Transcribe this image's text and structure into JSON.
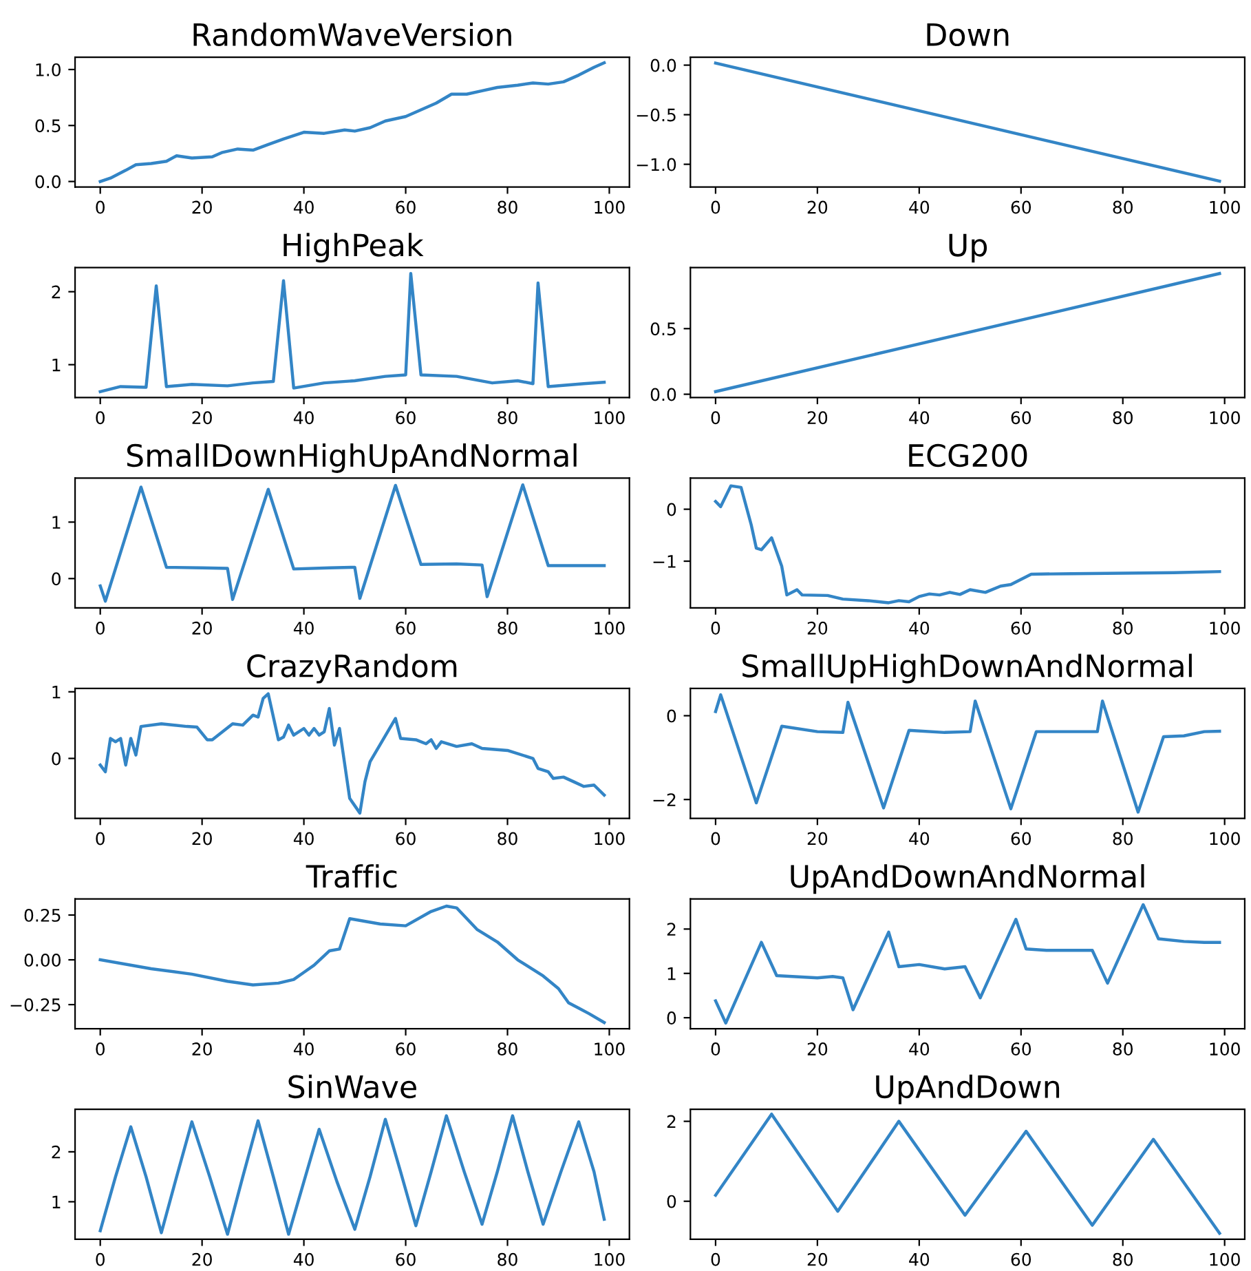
{
  "chart_data": [
    {
      "type": "line",
      "title": "RandomWaveVersion",
      "xlim": [
        -4.95,
        103.95
      ],
      "xticks": [
        0,
        20,
        40,
        60,
        80,
        100
      ],
      "ylim": [
        -0.05,
        1.11
      ],
      "yticks": [
        {
          "value": 0,
          "label": "0.0"
        },
        {
          "value": 0.5,
          "label": "0.5"
        },
        {
          "value": 1,
          "label": "1.0"
        }
      ],
      "grid": false,
      "series": [
        {
          "color": "#3385c6",
          "x": [
            0,
            2,
            5,
            7,
            10,
            13,
            15,
            18,
            22,
            24,
            27,
            30,
            33,
            36,
            40,
            44,
            48,
            50,
            53,
            56,
            60,
            63,
            66,
            69,
            72,
            75,
            78,
            82,
            85,
            88,
            91,
            94,
            97,
            99
          ],
          "values": [
            0,
            0.03,
            0.1,
            0.15,
            0.16,
            0.18,
            0.23,
            0.21,
            0.22,
            0.26,
            0.29,
            0.28,
            0.33,
            0.38,
            0.44,
            0.43,
            0.46,
            0.45,
            0.48,
            0.54,
            0.58,
            0.64,
            0.7,
            0.78,
            0.78,
            0.81,
            0.84,
            0.86,
            0.88,
            0.87,
            0.89,
            0.95,
            1.02,
            1.06
          ]
        }
      ]
    },
    {
      "type": "line",
      "title": "Down",
      "xlim": [
        -4.95,
        103.95
      ],
      "xticks": [
        0,
        20,
        40,
        60,
        80,
        100
      ],
      "ylim": [
        -1.23,
        0.08
      ],
      "yticks": [
        {
          "value": -1,
          "label": "−1.0"
        },
        {
          "value": -0.5,
          "label": "−0.5"
        },
        {
          "value": 0,
          "label": "0.0"
        }
      ],
      "grid": false,
      "series": [
        {
          "color": "#3385c6",
          "x": [
            0,
            99
          ],
          "values": [
            0.02,
            -1.17
          ]
        }
      ]
    },
    {
      "type": "line",
      "title": "HighPeak",
      "xlim": [
        -4.95,
        103.95
      ],
      "xticks": [
        0,
        20,
        40,
        60,
        80,
        100
      ],
      "ylim": [
        0.55,
        2.33
      ],
      "yticks": [
        1,
        2
      ],
      "grid": false,
      "series": [
        {
          "color": "#3385c6",
          "x": [
            0,
            4,
            9,
            11,
            13,
            18,
            25,
            30,
            34,
            36,
            38,
            44,
            50,
            56,
            60,
            61,
            63,
            70,
            77,
            82,
            85,
            86,
            88,
            95,
            99
          ],
          "values": [
            0.63,
            0.7,
            0.69,
            2.08,
            0.7,
            0.73,
            0.71,
            0.75,
            0.77,
            2.15,
            0.68,
            0.75,
            0.78,
            0.84,
            0.86,
            2.25,
            0.86,
            0.84,
            0.75,
            0.78,
            0.74,
            2.12,
            0.7,
            0.74,
            0.76
          ]
        }
      ]
    },
    {
      "type": "line",
      "title": "Up",
      "xlim": [
        -4.95,
        103.95
      ],
      "xticks": [
        0,
        20,
        40,
        60,
        80,
        100
      ],
      "ylim": [
        -0.025,
        0.965
      ],
      "yticks": [
        {
          "value": 0,
          "label": "0.0"
        },
        {
          "value": 0.5,
          "label": "0.5"
        }
      ],
      "grid": false,
      "series": [
        {
          "color": "#3385c6",
          "x": [
            0,
            99
          ],
          "values": [
            0.02,
            0.92
          ]
        }
      ]
    },
    {
      "type": "line",
      "title": "SmallDownHighUpAndNormal",
      "xlim": [
        -4.95,
        103.95
      ],
      "xticks": [
        0,
        20,
        40,
        60,
        80,
        100
      ],
      "ylim": [
        -0.52,
        1.78
      ],
      "yticks": [
        0,
        1
      ],
      "grid": false,
      "series": [
        {
          "color": "#3385c6",
          "x": [
            0,
            1,
            8,
            13,
            20,
            25,
            26,
            33,
            38,
            45,
            50,
            51,
            58,
            63,
            70,
            75,
            76,
            83,
            88,
            95,
            99
          ],
          "values": [
            -0.13,
            -0.4,
            1.62,
            0.2,
            0.19,
            0.18,
            -0.37,
            1.58,
            0.17,
            0.19,
            0.2,
            -0.35,
            1.65,
            0.25,
            0.26,
            0.24,
            -0.32,
            1.66,
            0.23,
            0.23,
            0.23
          ]
        }
      ]
    },
    {
      "type": "line",
      "title": "ECG200",
      "xlim": [
        -4.95,
        103.95
      ],
      "xticks": [
        0,
        20,
        40,
        60,
        80,
        100
      ],
      "ylim": [
        -1.9,
        0.6
      ],
      "yticks": [
        {
          "value": -1,
          "label": "−1"
        },
        0
      ],
      "grid": false,
      "series": [
        {
          "color": "#3385c6",
          "x": [
            0,
            1,
            3,
            5,
            7,
            8,
            9,
            11,
            13,
            14,
            16,
            17,
            22,
            25,
            30,
            34,
            36,
            38,
            40,
            42,
            44,
            46,
            48,
            50,
            53,
            56,
            58,
            60,
            62,
            70,
            80,
            90,
            99
          ],
          "values": [
            0.15,
            0.05,
            0.45,
            0.42,
            -0.3,
            -0.75,
            -0.78,
            -0.55,
            -1.1,
            -1.65,
            -1.55,
            -1.65,
            -1.66,
            -1.73,
            -1.76,
            -1.8,
            -1.76,
            -1.78,
            -1.68,
            -1.63,
            -1.65,
            -1.6,
            -1.64,
            -1.55,
            -1.6,
            -1.48,
            -1.45,
            -1.35,
            -1.25,
            -1.24,
            -1.23,
            -1.22,
            -1.2
          ]
        }
      ]
    },
    {
      "type": "line",
      "title": "CrazyRandom",
      "xlim": [
        -4.95,
        103.95
      ],
      "xticks": [
        0,
        20,
        40,
        60,
        80,
        100
      ],
      "ylim": [
        -0.9,
        1.05
      ],
      "yticks": [
        0,
        1
      ],
      "grid": false,
      "series": [
        {
          "color": "#3385c6",
          "x": [
            0,
            1,
            2,
            3,
            4,
            5,
            6,
            7,
            8,
            12,
            17,
            19,
            21,
            22,
            26,
            28,
            30,
            31,
            32,
            33,
            35,
            36,
            37,
            38,
            40,
            41,
            42,
            43,
            44,
            45,
            46,
            47,
            49,
            51,
            52,
            53,
            58,
            59,
            62,
            64,
            65,
            66,
            67,
            70,
            73,
            75,
            80,
            85,
            86,
            88,
            89,
            91,
            93,
            95,
            97,
            99
          ],
          "values": [
            -0.1,
            -0.2,
            0.3,
            0.25,
            0.3,
            -0.1,
            0.3,
            0.05,
            0.48,
            0.52,
            0.48,
            0.47,
            0.28,
            0.28,
            0.52,
            0.5,
            0.65,
            0.62,
            0.9,
            0.97,
            0.28,
            0.32,
            0.5,
            0.35,
            0.45,
            0.35,
            0.45,
            0.35,
            0.4,
            0.75,
            0.2,
            0.45,
            -0.6,
            -0.82,
            -0.35,
            -0.05,
            0.6,
            0.3,
            0.28,
            0.22,
            0.28,
            0.15,
            0.25,
            0.18,
            0.22,
            0.15,
            0.12,
            0.0,
            -0.15,
            -0.2,
            -0.3,
            -0.28,
            -0.35,
            -0.42,
            -0.4,
            -0.55
          ]
        }
      ]
    },
    {
      "type": "line",
      "title": "SmallUpHighDownAndNormal",
      "xlim": [
        -4.95,
        103.95
      ],
      "xticks": [
        0,
        20,
        40,
        60,
        80,
        100
      ],
      "ylim": [
        -2.45,
        0.65
      ],
      "yticks": [
        {
          "value": -2,
          "label": "−2"
        },
        0
      ],
      "grid": false,
      "series": [
        {
          "color": "#3385c6",
          "x": [
            0,
            1,
            8,
            13,
            20,
            25,
            26,
            33,
            38,
            45,
            50,
            51,
            58,
            63,
            70,
            75,
            76,
            83,
            88,
            92,
            96,
            99
          ],
          "values": [
            0.1,
            0.5,
            -2.08,
            -0.25,
            -0.38,
            -0.4,
            0.32,
            -2.2,
            -0.35,
            -0.4,
            -0.38,
            0.35,
            -2.22,
            -0.38,
            -0.38,
            -0.38,
            0.35,
            -2.3,
            -0.5,
            -0.48,
            -0.38,
            -0.37
          ]
        }
      ]
    },
    {
      "type": "line",
      "title": "Traffic",
      "xlim": [
        -4.95,
        103.95
      ],
      "xticks": [
        0,
        20,
        40,
        60,
        80,
        100
      ],
      "ylim": [
        -0.385,
        0.34
      ],
      "yticks": [
        {
          "value": -0.25,
          "label": "−0.25"
        },
        {
          "value": 0,
          "label": "0.00"
        },
        0.25
      ],
      "grid": false,
      "series": [
        {
          "color": "#3385c6",
          "x": [
            0,
            10,
            18,
            25,
            30,
            35,
            38,
            40,
            42,
            45,
            47,
            49,
            55,
            60,
            65,
            68,
            70,
            74,
            78,
            82,
            87,
            90,
            92,
            94,
            96,
            99
          ],
          "values": [
            0,
            -0.05,
            -0.08,
            -0.12,
            -0.14,
            -0.13,
            -0.11,
            -0.07,
            -0.03,
            0.05,
            0.06,
            0.23,
            0.2,
            0.19,
            0.27,
            0.3,
            0.29,
            0.17,
            0.1,
            0.0,
            -0.09,
            -0.16,
            -0.24,
            -0.27,
            -0.3,
            -0.35
          ]
        }
      ]
    },
    {
      "type": "line",
      "title": "UpAndDownAndNormal",
      "xlim": [
        -4.95,
        103.95
      ],
      "xticks": [
        0,
        20,
        40,
        60,
        80,
        100
      ],
      "ylim": [
        -0.25,
        2.68
      ],
      "yticks": [
        0,
        1,
        2
      ],
      "grid": false,
      "series": [
        {
          "color": "#3385c6",
          "x": [
            0,
            2,
            9,
            12,
            20,
            23,
            25,
            27,
            34,
            36,
            40,
            45,
            49,
            52,
            59,
            61,
            65,
            70,
            74,
            77,
            84,
            87,
            92,
            96,
            99
          ],
          "values": [
            0.38,
            -0.12,
            1.7,
            0.95,
            0.9,
            0.93,
            0.9,
            0.18,
            1.93,
            1.15,
            1.2,
            1.1,
            1.15,
            0.45,
            2.22,
            1.55,
            1.52,
            1.52,
            1.52,
            0.78,
            2.55,
            1.78,
            1.72,
            1.7,
            1.7
          ]
        }
      ]
    },
    {
      "type": "line",
      "title": "SinWave",
      "xlim": [
        -4.95,
        103.95
      ],
      "xticks": [
        0,
        20,
        40,
        60,
        80,
        100
      ],
      "ylim": [
        0.25,
        2.85
      ],
      "yticks": [
        1,
        2
      ],
      "grid": false,
      "series": [
        {
          "color": "#3385c6",
          "x": [
            0,
            3,
            6,
            9,
            12,
            15,
            18,
            21.5,
            25,
            28,
            31,
            34,
            37,
            40,
            43,
            46.5,
            50,
            53,
            56,
            59,
            62,
            65,
            68,
            71.5,
            75,
            78,
            81,
            84,
            87,
            90.5,
            94,
            97,
            99
          ],
          "values": [
            0.42,
            1.5,
            2.5,
            1.5,
            0.38,
            1.5,
            2.6,
            1.5,
            0.35,
            1.5,
            2.62,
            1.5,
            0.35,
            1.4,
            2.45,
            1.4,
            0.45,
            1.5,
            2.65,
            1.6,
            0.52,
            1.6,
            2.72,
            1.6,
            0.55,
            1.6,
            2.72,
            1.6,
            0.55,
            1.6,
            2.6,
            1.6,
            0.65
          ]
        }
      ]
    },
    {
      "type": "line",
      "title": "UpAndDown",
      "xlim": [
        -4.95,
        103.95
      ],
      "xticks": [
        0,
        20,
        40,
        60,
        80,
        100
      ],
      "ylim": [
        -0.95,
        2.3
      ],
      "yticks": [
        0,
        2
      ],
      "grid": false,
      "series": [
        {
          "color": "#3385c6",
          "x": [
            0,
            11,
            24,
            36,
            49,
            61,
            74,
            86,
            99
          ],
          "values": [
            0.15,
            2.18,
            -0.25,
            2.0,
            -0.35,
            1.75,
            -0.6,
            1.55,
            -0.8
          ]
        }
      ]
    }
  ]
}
